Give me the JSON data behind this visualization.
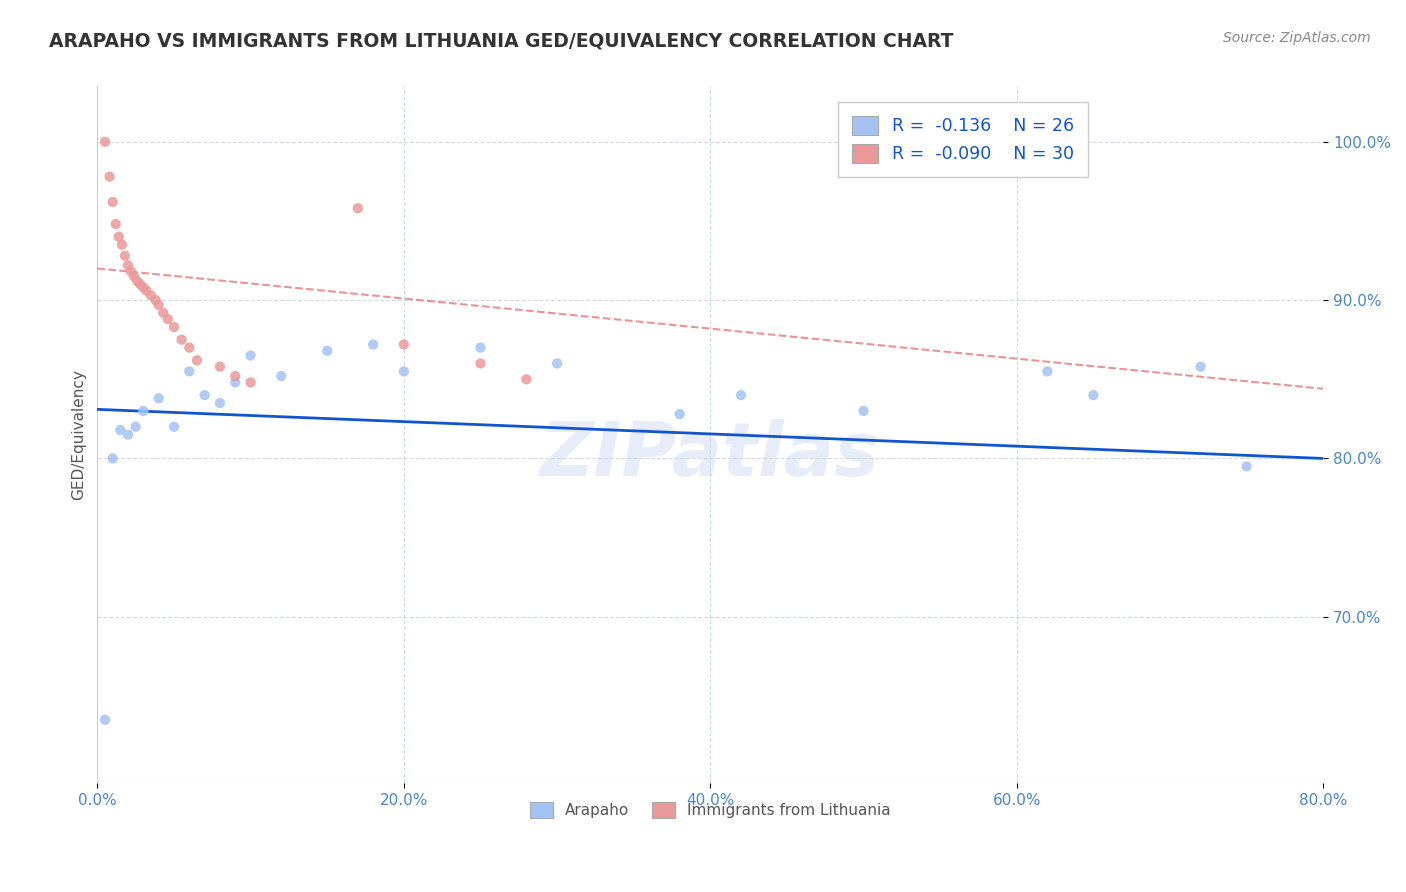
{
  "title": "ARAPAHO VS IMMIGRANTS FROM LITHUANIA GED/EQUIVALENCY CORRELATION CHART",
  "source": "Source: ZipAtlas.com",
  "ylabel": "GED/Equivalency",
  "yticks": [
    "70.0%",
    "80.0%",
    "90.0%",
    "100.0%"
  ],
  "ytick_vals": [
    0.7,
    0.8,
    0.9,
    1.0
  ],
  "xticks": [
    "0.0%",
    "20.0%",
    "40.0%",
    "60.0%",
    "80.0%"
  ],
  "xtick_vals": [
    0.0,
    0.2,
    0.4,
    0.6,
    0.8
  ],
  "xlim": [
    0.0,
    0.8
  ],
  "ylim": [
    0.595,
    1.035
  ],
  "r_blue": -0.136,
  "n_blue": 26,
  "r_pink": -0.09,
  "n_pink": 30,
  "blue_dot_color": "#a4c2f4",
  "pink_dot_color": "#ea9999",
  "blue_line_color": "#1155cc",
  "pink_line_color": "#e06666",
  "watermark": "ZIPatlas",
  "blue_scatter_x": [
    0.005,
    0.01,
    0.015,
    0.02,
    0.025,
    0.03,
    0.04,
    0.05,
    0.06,
    0.07,
    0.08,
    0.09,
    0.1,
    0.12,
    0.15,
    0.18,
    0.2,
    0.25,
    0.3,
    0.38,
    0.42,
    0.5,
    0.62,
    0.65,
    0.72,
    0.75
  ],
  "blue_scatter_y": [
    0.635,
    0.8,
    0.818,
    0.815,
    0.82,
    0.83,
    0.838,
    0.82,
    0.855,
    0.84,
    0.835,
    0.848,
    0.865,
    0.852,
    0.868,
    0.872,
    0.855,
    0.87,
    0.86,
    0.828,
    0.84,
    0.83,
    0.855,
    0.84,
    0.858,
    0.795
  ],
  "pink_scatter_x": [
    0.005,
    0.008,
    0.01,
    0.012,
    0.014,
    0.016,
    0.018,
    0.02,
    0.022,
    0.024,
    0.026,
    0.028,
    0.03,
    0.032,
    0.035,
    0.038,
    0.04,
    0.043,
    0.046,
    0.05,
    0.055,
    0.06,
    0.065,
    0.08,
    0.09,
    0.1,
    0.17,
    0.2,
    0.25,
    0.28
  ],
  "pink_scatter_y": [
    1.0,
    0.978,
    0.962,
    0.948,
    0.94,
    0.935,
    0.928,
    0.922,
    0.918,
    0.915,
    0.912,
    0.91,
    0.908,
    0.906,
    0.903,
    0.9,
    0.897,
    0.892,
    0.888,
    0.883,
    0.875,
    0.87,
    0.862,
    0.858,
    0.852,
    0.848,
    0.958,
    0.872,
    0.86,
    0.85
  ],
  "blue_line_x0": 0.0,
  "blue_line_y0": 0.831,
  "blue_line_x1": 0.8,
  "blue_line_y1": 0.8,
  "pink_line_x0": 0.0,
  "pink_line_y0": 0.92,
  "pink_line_x1": 0.8,
  "pink_line_y1": 0.844
}
